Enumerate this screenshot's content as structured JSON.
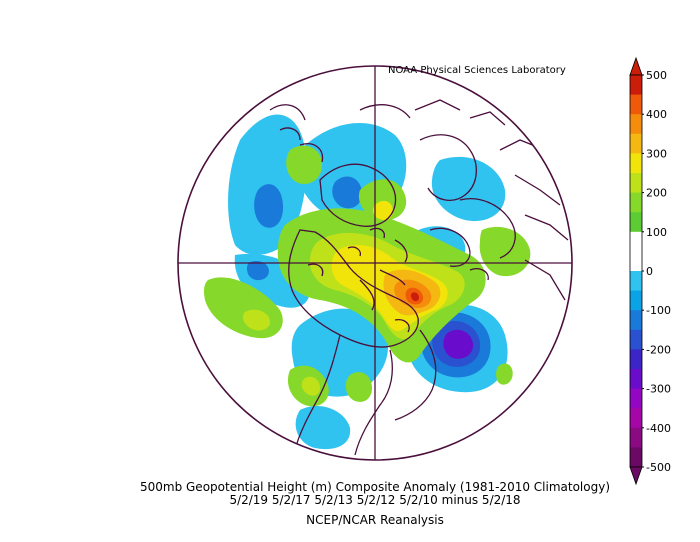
{
  "credit": "NOAA Physical Sciences Laboratory",
  "caption": {
    "line1": "500mb Geopotential Height (m) Composite Anomaly (1981-2010 Climatology)",
    "line2": "5/2/19 5/2/17 5/2/13 5/2/12 5/2/10 minus 5/2/18",
    "line3": "NCEP/NCAR Reanalysis"
  },
  "colorbar": {
    "labels": [
      "500",
      "400",
      "300",
      "200",
      "100",
      "0",
      "-100",
      "-200",
      "-300",
      "-400",
      "-500"
    ],
    "colors": [
      "#cc1d0a",
      "#ef5a0a",
      "#f58d0c",
      "#f5b812",
      "#f0e40a",
      "#bfe11a",
      "#86d82a",
      "#5ccb34",
      "#ffffff",
      "#ffffff",
      "#31c3ef",
      "#0aa3e5",
      "#1a7ad9",
      "#2a52d0",
      "#3d24c7",
      "#6a0ccc",
      "#9306c2",
      "#a506a8",
      "#8a0a82",
      "#6b0a64"
    ]
  },
  "map": {
    "projection": "north-polar-stereographic",
    "variable": "500mb geopotential height anomaly",
    "anomaly_features": [
      {
        "name": "positive-anomaly-max",
        "sign": "positive",
        "approx_peak_m": 350
      },
      {
        "name": "negative-anomaly-min",
        "sign": "negative",
        "approx_peak_m": -250
      }
    ]
  }
}
